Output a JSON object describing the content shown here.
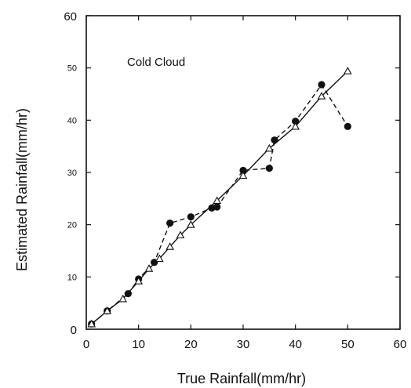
{
  "chart_data": {
    "type": "scatter",
    "annotation": "Cold Cloud",
    "xlabel": "True Rainfall(mm/hr)",
    "ylabel": "Estimated Rainfall(mm/hr)",
    "xlim": [
      0,
      60
    ],
    "ylim": [
      0,
      60
    ],
    "x_ticks": [
      0,
      10,
      20,
      30,
      40,
      50,
      60
    ],
    "y_ticks": [
      0,
      10,
      20,
      30,
      40,
      50,
      60
    ],
    "x_tick_labels": [
      "0",
      "10",
      "20",
      "30",
      "40",
      "50",
      "60"
    ],
    "y_tick_labels": [
      "0",
      "10",
      "20",
      "30",
      "40",
      "50",
      "60"
    ],
    "grid": false,
    "legend": "none",
    "series": [
      {
        "marker": "filled-circle",
        "line": "dashed",
        "color": "#111111",
        "points": [
          [
            1,
            1
          ],
          [
            4,
            3.5
          ],
          [
            8,
            6.8
          ],
          [
            10,
            9.6
          ],
          [
            13,
            12.8
          ],
          [
            16,
            20.3
          ],
          [
            20,
            21.5
          ],
          [
            24,
            23.2
          ],
          [
            25,
            23.4
          ],
          [
            30,
            30.4
          ],
          [
            35,
            30.8
          ],
          [
            36,
            36.2
          ],
          [
            40,
            39.8
          ],
          [
            45,
            46.8
          ],
          [
            50,
            38.8
          ]
        ]
      },
      {
        "marker": "open-triangle",
        "line": "solid",
        "color": "#111111",
        "points": [
          [
            1,
            1
          ],
          [
            4,
            3.5
          ],
          [
            7,
            5.8
          ],
          [
            10,
            9.2
          ],
          [
            12,
            11.6
          ],
          [
            14,
            13.5
          ],
          [
            16,
            15.8
          ],
          [
            18,
            18.0
          ],
          [
            20,
            20.0
          ],
          [
            25,
            24.6
          ],
          [
            30,
            29.4
          ],
          [
            35,
            34.6
          ],
          [
            40,
            38.8
          ],
          [
            45,
            44.6
          ],
          [
            50,
            49.4
          ]
        ]
      }
    ]
  }
}
